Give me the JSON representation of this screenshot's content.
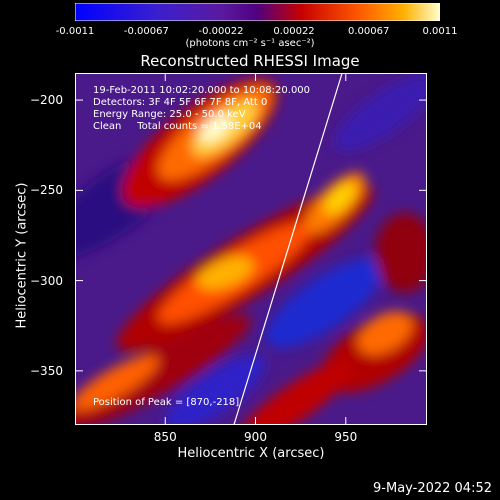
{
  "colorbar": {
    "ticks": [
      "-0.0011",
      "-0.00067",
      "-0.00022",
      "0.00022",
      "0.00067",
      "0.0011"
    ],
    "tick_values": [
      -0.0011,
      -0.00067,
      -0.00022,
      0.00022,
      0.00067,
      0.0011
    ],
    "unit_label": "(photons cm⁻² s⁻¹ asec⁻²)"
  },
  "chart_data": {
    "type": "heatmap",
    "title": "Reconstructed RHESSI Image",
    "xlabel": "Heliocentric X (arcsec)",
    "ylabel": "Heliocentric Y (arcsec)",
    "xlim": [
      800,
      995
    ],
    "ylim": [
      -380,
      -185
    ],
    "x_ticks": [
      850,
      900,
      950
    ],
    "y_ticks": [
      -200,
      -250,
      -300,
      -350
    ],
    "zlim": [
      -0.0011,
      0.0011
    ],
    "colormap": "rainbow (blue-purple-red-orange-yellow-white)",
    "limb_line": [
      [
        888,
        -380
      ],
      [
        948,
        -185
      ]
    ],
    "peak": [
      870,
      -218
    ]
  },
  "annotations": {
    "time_range": "19-Feb-2011 10:02:20.000 to 10:08:20.000",
    "detectors": "Detectors: 3F 4F 5F 6F 7F 8F, Att 0",
    "energy": "Energy Range: 25.0 - 50.0 keV",
    "clean": "Clean     Total counts = 1.58E+04",
    "peak_text": "Position of Peak = [870,-218]"
  },
  "footer_date": "9-May-2022 04:52"
}
